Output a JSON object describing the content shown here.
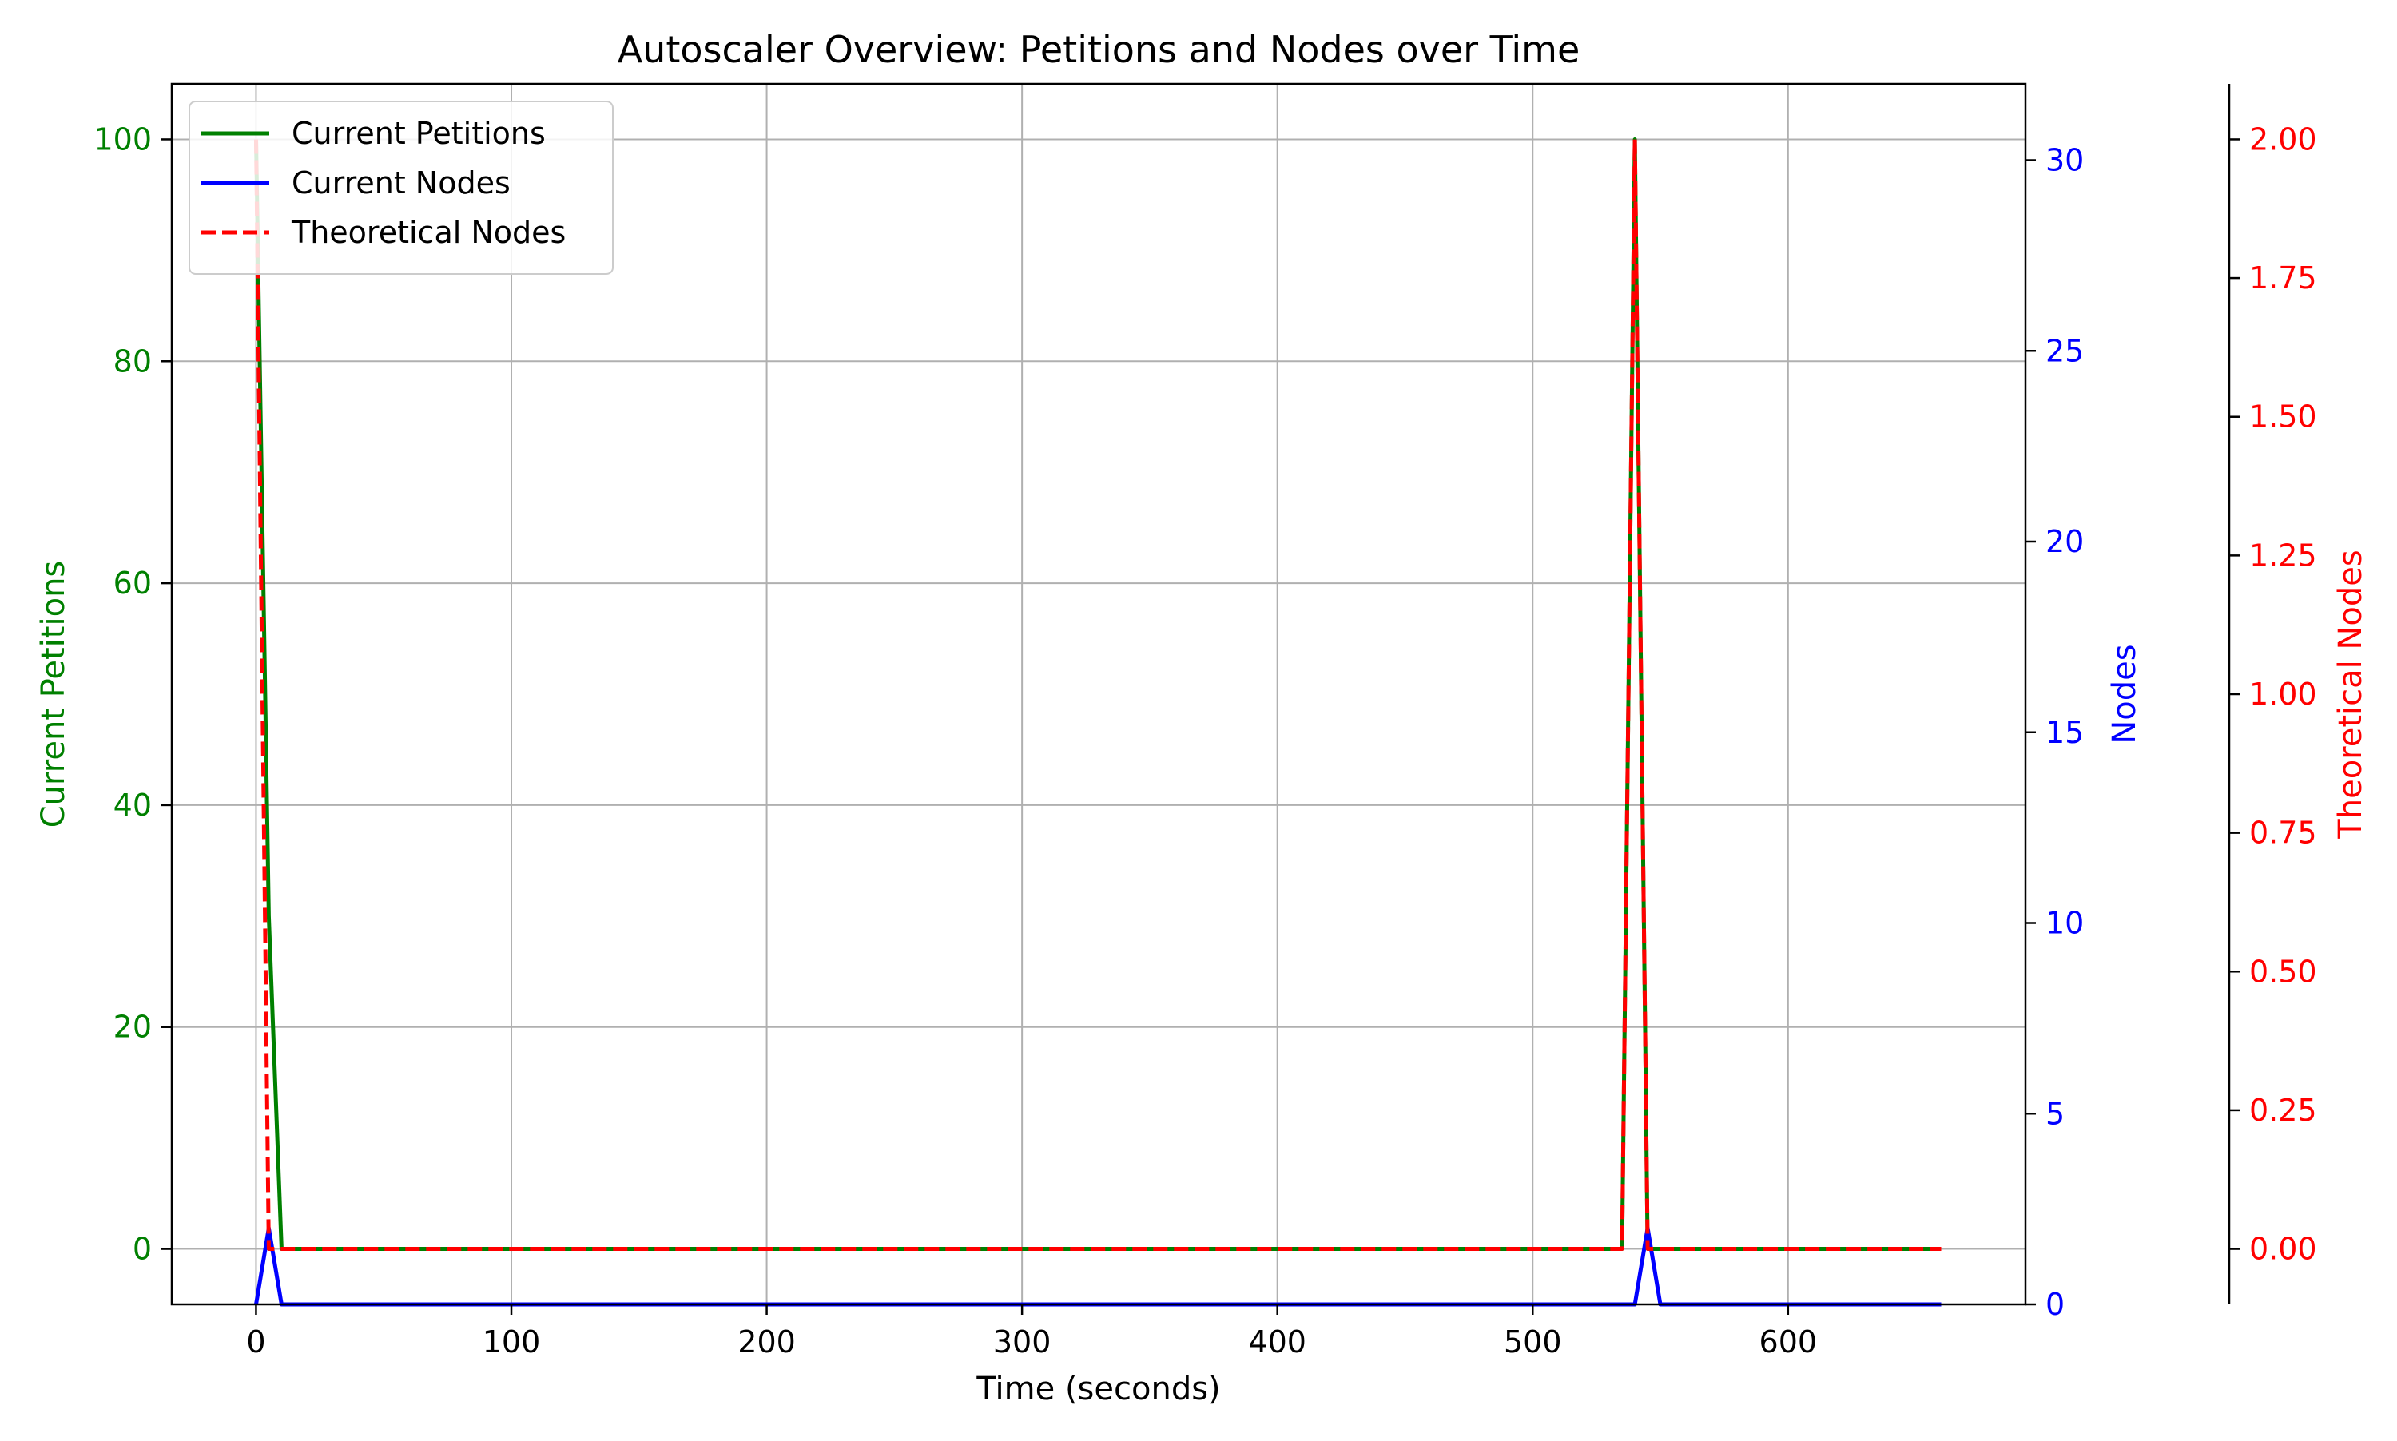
{
  "chart_data": {
    "type": "line",
    "title": "Autoscaler Overview: Petitions and Nodes over Time",
    "xlabel": "Time (seconds)",
    "xlim": [
      -33,
      693
    ],
    "xticks": [
      0,
      100,
      200,
      300,
      400,
      500,
      600
    ],
    "grid": true,
    "legend_position": "top-left",
    "axes": [
      {
        "id": "left",
        "label": "Current Petitions",
        "color": "#008000",
        "ylim": [
          -5,
          105
        ],
        "ticks": [
          0,
          20,
          40,
          60,
          80,
          100
        ],
        "tick_labels": [
          "0",
          "20",
          "40",
          "60",
          "80",
          "100"
        ]
      },
      {
        "id": "right1",
        "label": "Nodes",
        "color": "#0000ff",
        "ylim": [
          0,
          32
        ],
        "ticks": [
          0,
          5,
          10,
          15,
          20,
          25,
          30
        ],
        "tick_labels": [
          "0",
          "5",
          "10",
          "15",
          "20",
          "25",
          "30"
        ]
      },
      {
        "id": "right2",
        "label": "Theoretical Nodes",
        "color": "#ff0000",
        "ylim": [
          -0.1,
          2.1
        ],
        "ticks": [
          0,
          0.25,
          0.5,
          0.75,
          1.0,
          1.25,
          1.5,
          1.75,
          2.0
        ],
        "tick_labels": [
          "0.00",
          "0.25",
          "0.50",
          "0.75",
          "1.00",
          "1.25",
          "1.50",
          "1.75",
          "2.00"
        ]
      }
    ],
    "series": [
      {
        "name": "Current Petitions",
        "axis": "left",
        "color": "#008000",
        "style": "solid",
        "x": [
          0,
          5,
          10,
          535,
          540,
          545,
          660
        ],
        "y": [
          100,
          30,
          0,
          0,
          100,
          0,
          0
        ]
      },
      {
        "name": "Current Nodes",
        "axis": "right1",
        "color": "#0000ff",
        "style": "solid",
        "x": [
          0,
          5,
          10,
          540,
          545,
          550,
          660
        ],
        "y": [
          0,
          2,
          0,
          0,
          2,
          0,
          0
        ]
      },
      {
        "name": "Theoretical Nodes",
        "axis": "right2",
        "color": "#ff0000",
        "style": "dashed",
        "x": [
          0,
          5,
          535,
          540,
          545,
          660
        ],
        "y": [
          2,
          0,
          0,
          2,
          0,
          0
        ]
      }
    ]
  }
}
